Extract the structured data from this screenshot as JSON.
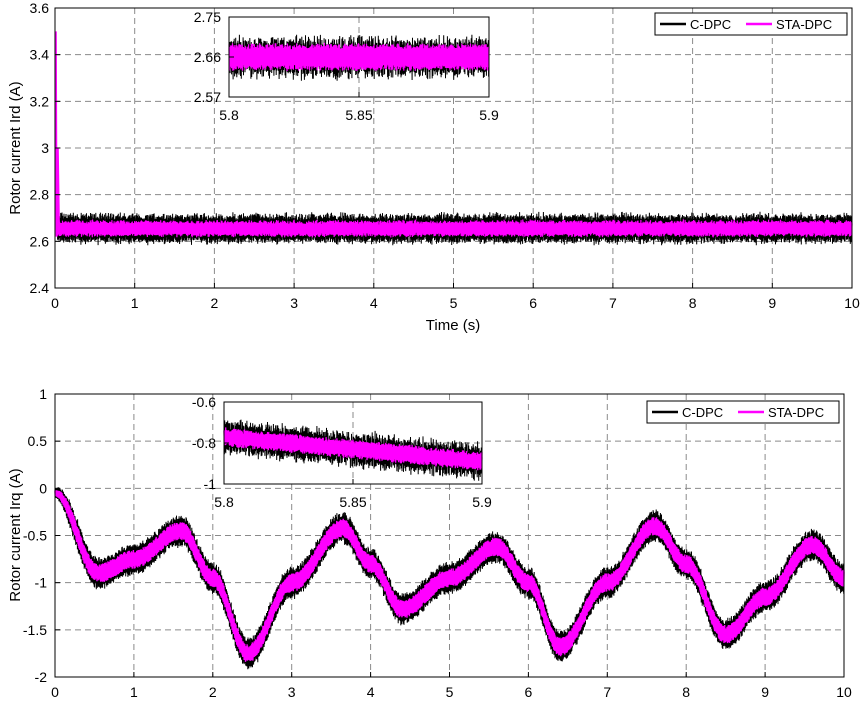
{
  "colors": {
    "c_dpc": "#000000",
    "sta_dpc": "#ff00ff",
    "grid": "#8a8a8a"
  },
  "chart_data": [
    {
      "type": "line",
      "title": "",
      "xlabel": "Time (s)",
      "ylabel": "Rotor current Ird (A)",
      "xlim": [
        0,
        10
      ],
      "ylim": [
        2.4,
        3.6
      ],
      "xticks": [
        "0",
        "1",
        "2",
        "3",
        "4",
        "5",
        "6",
        "7",
        "8",
        "9",
        "10"
      ],
      "yticks": [
        "2.4",
        "2.6",
        "2.8",
        "3",
        "3.2",
        "3.4",
        "3.6"
      ],
      "grid": true,
      "legend_position": "top-right",
      "series": [
        {
          "name": "C-DPC",
          "color": "#000000",
          "mean": 2.655,
          "ripple": 0.07,
          "initial_peak": 2.655
        },
        {
          "name": "STA-DPC",
          "color": "#ff00ff",
          "mean": 2.655,
          "ripple": 0.04,
          "initial_peak": 3.5
        }
      ],
      "inset": {
        "xlim": [
          5.8,
          5.9
        ],
        "ylim": [
          2.57,
          2.75
        ],
        "xticks": [
          "5.8",
          "5.85",
          "5.9"
        ],
        "yticks": [
          "2.57",
          "2.66",
          "2.75"
        ],
        "series": [
          {
            "name": "C-DPC",
            "mean": 2.66,
            "ripple": 0.08
          },
          {
            "name": "STA-DPC",
            "mean": 2.66,
            "ripple": 0.05
          }
        ]
      }
    },
    {
      "type": "line",
      "title": "",
      "xlabel": "",
      "ylabel": "Rotor current Irq (A)",
      "xlim": [
        0,
        10
      ],
      "ylim": [
        -2,
        1
      ],
      "xticks": [
        "0",
        "1",
        "2",
        "3",
        "4",
        "5",
        "6",
        "7",
        "8",
        "9",
        "10"
      ],
      "yticks": [
        "-2",
        "-1.5",
        "-1",
        "-0.5",
        "0",
        "0.5",
        "1"
      ],
      "grid": true,
      "legend_position": "top-right",
      "series": [
        {
          "name": "C-DPC",
          "color": "#000000",
          "band_half_width": 0.17
        },
        {
          "name": "STA-DPC",
          "color": "#ff00ff",
          "band_half_width": 0.1
        }
      ],
      "centerline": {
        "x": [
          0,
          0.55,
          1.0,
          1.6,
          2.0,
          2.45,
          3.0,
          3.65,
          4.0,
          4.4,
          5.0,
          5.6,
          6.0,
          6.4,
          7.0,
          7.6,
          8.0,
          8.5,
          9.0,
          9.6,
          10.0
        ],
        "y": [
          -0.05,
          -0.9,
          -0.75,
          -0.45,
          -0.95,
          -1.75,
          -1.0,
          -0.42,
          -0.8,
          -1.28,
          -0.95,
          -0.62,
          -1.0,
          -1.68,
          -1.0,
          -0.4,
          -0.8,
          -1.55,
          -1.15,
          -0.6,
          -0.95
        ]
      },
      "inset": {
        "xlim": [
          5.8,
          5.9
        ],
        "ylim": [
          -1,
          -0.6
        ],
        "xticks": [
          "5.8",
          "5.85",
          "5.9"
        ],
        "yticks": [
          "-1",
          "-0.8",
          "-0.6"
        ],
        "center_start": -0.77,
        "center_end": -0.89,
        "series": [
          {
            "name": "C-DPC",
            "half_width": 0.1
          },
          {
            "name": "STA-DPC",
            "half_width": 0.045
          }
        ]
      }
    }
  ]
}
